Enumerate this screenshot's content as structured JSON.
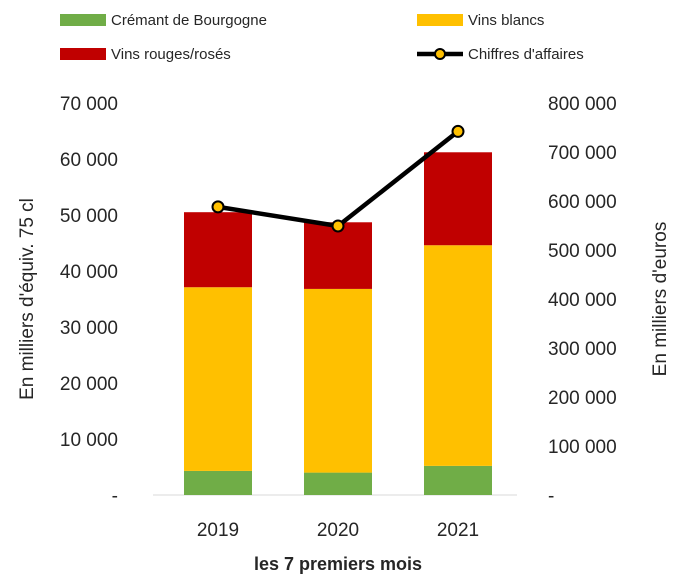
{
  "chart_data": {
    "type": "bar",
    "stacked": true,
    "categories": [
      "2019",
      "2020",
      "2021"
    ],
    "series": [
      {
        "name": "Crémant de Bourgogne",
        "axis": "left",
        "color": "#70ad47",
        "values": [
          4300,
          4000,
          5200
        ]
      },
      {
        "name": "Vins blancs",
        "axis": "left",
        "color": "#ffc000",
        "values": [
          32800,
          32800,
          39400
        ]
      },
      {
        "name": "Vins rouges/rosés",
        "axis": "left",
        "color": "#c00000",
        "values": [
          13400,
          11900,
          16600
        ]
      },
      {
        "name": "Chiffres d'affaires",
        "type": "line",
        "axis": "right",
        "color": "#000000",
        "marker_color": "#ffc000",
        "values": [
          588000,
          549000,
          742000
        ]
      }
    ],
    "legend": {
      "placement": "top",
      "items": [
        {
          "label": "Crémant de Bourgogne",
          "color": "#70ad47",
          "kind": "box"
        },
        {
          "label": "Vins blancs",
          "color": "#ffc000",
          "kind": "box"
        },
        {
          "label": "Vins rouges/rosés",
          "color": "#c00000",
          "kind": "box"
        },
        {
          "label": "Chiffres d'affaires",
          "color": "#000000",
          "kind": "line"
        }
      ]
    },
    "xlabel": "les 7 premiers mois",
    "ylabel_left": "En milliers d'équiv. 75 cl",
    "ylabel_right": "En milliers d'euros",
    "ylim_left": [
      0,
      70000
    ],
    "ylim_right": [
      0,
      800000
    ],
    "yticks_left": [
      "-",
      "10 000",
      "20 000",
      "30 000",
      "40 000",
      "50 000",
      "60 000",
      "70 000"
    ],
    "yticks_right": [
      "-",
      "100 000",
      "200 000",
      "300 000",
      "400 000",
      "500 000",
      "600 000",
      "700 000",
      "800 000"
    ],
    "grid": false
  }
}
